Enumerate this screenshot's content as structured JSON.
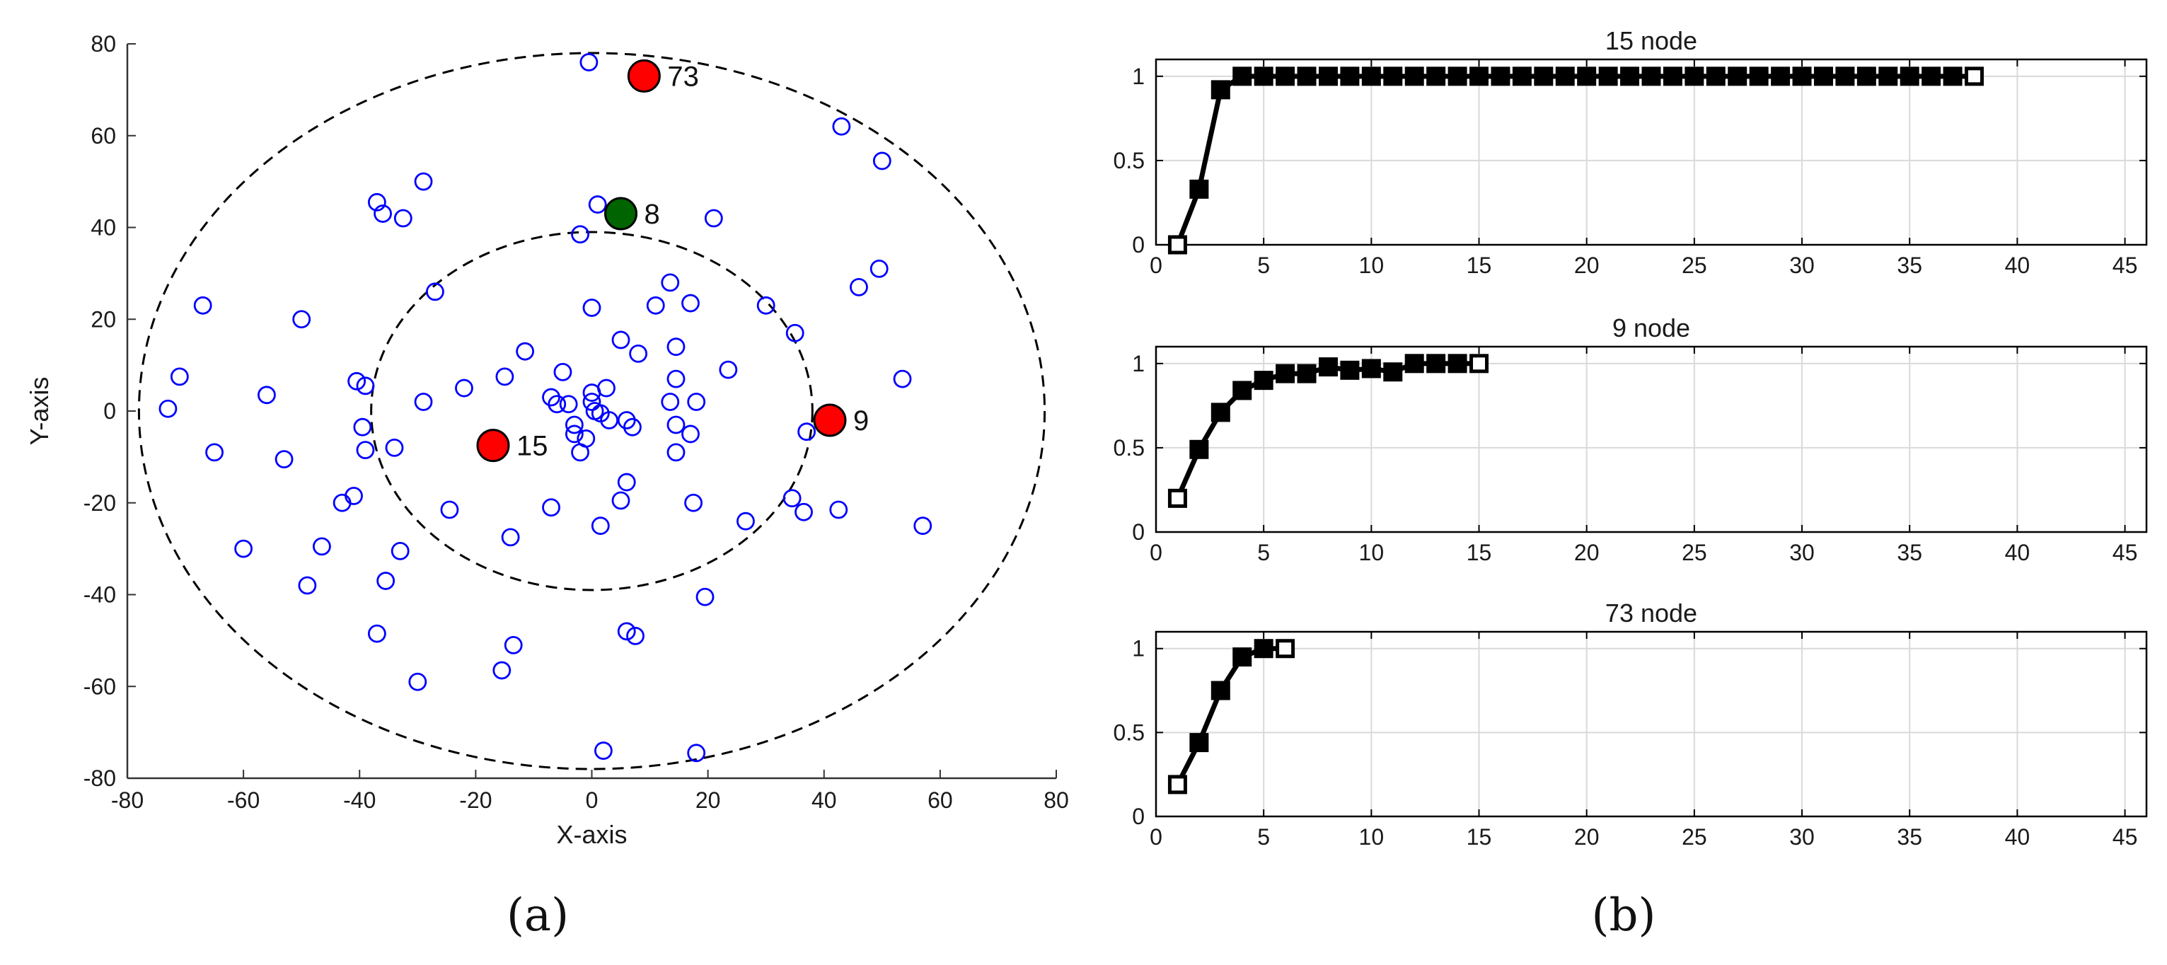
{
  "colors": {
    "scatter_nodes": "#0000ff",
    "highlight_red": "#ff0000",
    "highlight_green": "#006400",
    "line_series": "#000000",
    "grid": "#d9d9d9"
  },
  "panel_labels": [
    "(a)",
    "(b)"
  ],
  "chart_data": [
    {
      "type": "scatter",
      "xlabel": "X-axis",
      "ylabel": "Y-axis",
      "xlim": [
        -80,
        80
      ],
      "ylim": [
        -80,
        80
      ],
      "xticks": [
        -80,
        -60,
        -40,
        -20,
        0,
        20,
        40,
        60,
        80
      ],
      "yticks": [
        -80,
        -60,
        -40,
        -20,
        0,
        20,
        40,
        60,
        80
      ],
      "grid": false,
      "circles": [
        {
          "center": [
            0,
            0
          ],
          "rx": 78,
          "ry": 78,
          "style": "dashed"
        },
        {
          "center": [
            0,
            0
          ],
          "rx": 38,
          "ry": 39,
          "style": "dashed"
        }
      ],
      "points": [
        [
          -0.5,
          76
        ],
        [
          43,
          62
        ],
        [
          50,
          54.5
        ],
        [
          -29,
          50
        ],
        [
          -37,
          45.5
        ],
        [
          -36,
          43
        ],
        [
          -32.5,
          42
        ],
        [
          1,
          45
        ],
        [
          21,
          42
        ],
        [
          -2,
          38.5
        ],
        [
          49.5,
          31
        ],
        [
          46,
          27
        ],
        [
          13.5,
          28
        ],
        [
          -27,
          26
        ],
        [
          -67,
          23
        ],
        [
          -50,
          20
        ],
        [
          11,
          23
        ],
        [
          17,
          23.5
        ],
        [
          30,
          23
        ],
        [
          0,
          22.5
        ],
        [
          35,
          17
        ],
        [
          5,
          15.5
        ],
        [
          14.5,
          14
        ],
        [
          8,
          12.5
        ],
        [
          -11.5,
          13
        ],
        [
          -15,
          7.5
        ],
        [
          -71,
          7.5
        ],
        [
          53.5,
          7
        ],
        [
          23.5,
          9
        ],
        [
          14.5,
          7
        ],
        [
          -5,
          8.5
        ],
        [
          -40.5,
          6.5
        ],
        [
          -39,
          5.5
        ],
        [
          -22,
          5
        ],
        [
          2.5,
          5
        ],
        [
          0,
          4
        ],
        [
          -56,
          3.5
        ],
        [
          -29,
          2
        ],
        [
          0,
          2
        ],
        [
          -7,
          3
        ],
        [
          -6,
          1.5
        ],
        [
          -4,
          1.5
        ],
        [
          13.5,
          2
        ],
        [
          18,
          2
        ],
        [
          -73,
          0.5
        ],
        [
          0.5,
          0
        ],
        [
          1.5,
          -0.5
        ],
        [
          3,
          -2
        ],
        [
          6,
          -2
        ],
        [
          -3,
          -3
        ],
        [
          7,
          -3.5
        ],
        [
          -39.5,
          -3.5
        ],
        [
          -3,
          -5
        ],
        [
          -1,
          -6
        ],
        [
          14.5,
          -3
        ],
        [
          17,
          -5
        ],
        [
          -39,
          -8.5
        ],
        [
          -34,
          -8
        ],
        [
          -2,
          -9
        ],
        [
          14.5,
          -9
        ],
        [
          -65,
          -9
        ],
        [
          -53,
          -10.5
        ],
        [
          37,
          -4.5
        ],
        [
          6,
          -15.5
        ],
        [
          5,
          -19.5
        ],
        [
          -41,
          -18.5
        ],
        [
          -43,
          -20
        ],
        [
          -7,
          -21
        ],
        [
          -24.5,
          -21.5
        ],
        [
          17.5,
          -20
        ],
        [
          34.5,
          -19
        ],
        [
          36.5,
          -22
        ],
        [
          42.5,
          -21.5
        ],
        [
          26.5,
          -24
        ],
        [
          1.5,
          -25
        ],
        [
          -14,
          -27.5
        ],
        [
          57,
          -25
        ],
        [
          -46.5,
          -29.5
        ],
        [
          -60,
          -30
        ],
        [
          -33,
          -30.5
        ],
        [
          -35.5,
          -37
        ],
        [
          -49,
          -38
        ],
        [
          19.5,
          -40.5
        ],
        [
          -37,
          -48.5
        ],
        [
          6,
          -48
        ],
        [
          7.5,
          -49
        ],
        [
          -13.5,
          -51
        ],
        [
          -15.5,
          -56.5
        ],
        [
          -30,
          -59
        ],
        [
          2,
          -74
        ],
        [
          18,
          -74.5
        ]
      ],
      "highlighted": [
        {
          "label": "73",
          "x": 9,
          "y": 73,
          "color": "red"
        },
        {
          "label": "8",
          "x": 5,
          "y": 43,
          "color": "green"
        },
        {
          "label": "15",
          "x": -17,
          "y": -7.5,
          "color": "red"
        },
        {
          "label": "9",
          "x": 41,
          "y": -2,
          "color": "red"
        }
      ]
    },
    {
      "type": "line",
      "title": "15 node",
      "xlim": [
        0,
        46
      ],
      "ylim": [
        0,
        1.1
      ],
      "xticks": [
        0,
        5,
        10,
        15,
        20,
        25,
        30,
        35,
        40,
        45
      ],
      "yticks": [
        0,
        0.5,
        1
      ],
      "ytick_labels": [
        "0",
        "0.5",
        "1"
      ],
      "grid": true,
      "x": [
        1,
        2,
        3,
        4,
        5,
        6,
        7,
        8,
        9,
        10,
        11,
        12,
        13,
        14,
        15,
        16,
        17,
        18,
        19,
        20,
        21,
        22,
        23,
        24,
        25,
        26,
        27,
        28,
        29,
        30,
        31,
        32,
        33,
        34,
        35,
        36,
        37,
        38
      ],
      "y": [
        0,
        0.33,
        0.92,
        1,
        1,
        1,
        1,
        1,
        1,
        1,
        1,
        1,
        1,
        1,
        1,
        1,
        1,
        1,
        1,
        1,
        1,
        1,
        1,
        1,
        1,
        1,
        1,
        1,
        1,
        1,
        1,
        1,
        1,
        1,
        1,
        1,
        1,
        1
      ]
    },
    {
      "type": "line",
      "title": "9 node",
      "xlim": [
        0,
        46
      ],
      "ylim": [
        0,
        1.1
      ],
      "xticks": [
        0,
        5,
        10,
        15,
        20,
        25,
        30,
        35,
        40,
        45
      ],
      "yticks": [
        0,
        0.5,
        1
      ],
      "ytick_labels": [
        "0",
        "0.5",
        "1"
      ],
      "grid": true,
      "x": [
        1,
        2,
        3,
        4,
        5,
        6,
        7,
        8,
        9,
        10,
        11,
        12,
        13,
        14,
        15
      ],
      "y": [
        0.2,
        0.49,
        0.71,
        0.84,
        0.9,
        0.94,
        0.94,
        0.98,
        0.96,
        0.97,
        0.95,
        1,
        1,
        1,
        1
      ]
    },
    {
      "type": "line",
      "title": "73 node",
      "xlim": [
        0,
        46
      ],
      "ylim": [
        0,
        1.1
      ],
      "xticks": [
        0,
        5,
        10,
        15,
        20,
        25,
        30,
        35,
        40,
        45
      ],
      "yticks": [
        0,
        0.5,
        1
      ],
      "ytick_labels": [
        "0",
        "0.5",
        "1"
      ],
      "grid": true,
      "x": [
        1,
        2,
        3,
        4,
        5,
        6
      ],
      "y": [
        0.19,
        0.44,
        0.75,
        0.95,
        1,
        1
      ]
    }
  ]
}
